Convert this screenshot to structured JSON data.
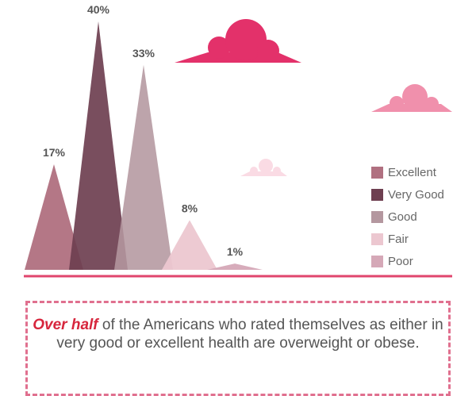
{
  "chart_data": {
    "type": "area",
    "categories": [
      "Excellent",
      "Very Good",
      "Good",
      "Fair",
      "Poor"
    ],
    "values": [
      17,
      40,
      33,
      8,
      1
    ],
    "data_labels": [
      "17%",
      "40%",
      "33%",
      "8%",
      "1%"
    ],
    "colors": [
      "#b07080",
      "#6e3f50",
      "#b4979f",
      "#ecc7d0",
      "#d5a8b7"
    ],
    "legend_position": "right",
    "grid": false
  },
  "callout": {
    "highlight": "Over half",
    "text": " of the Americans who rated themselves as either in very good or excellent health are overweight or obese."
  },
  "decorations": {
    "cloud_colors": [
      "#e3316a",
      "#f090ac",
      "#fadbe4"
    ]
  }
}
